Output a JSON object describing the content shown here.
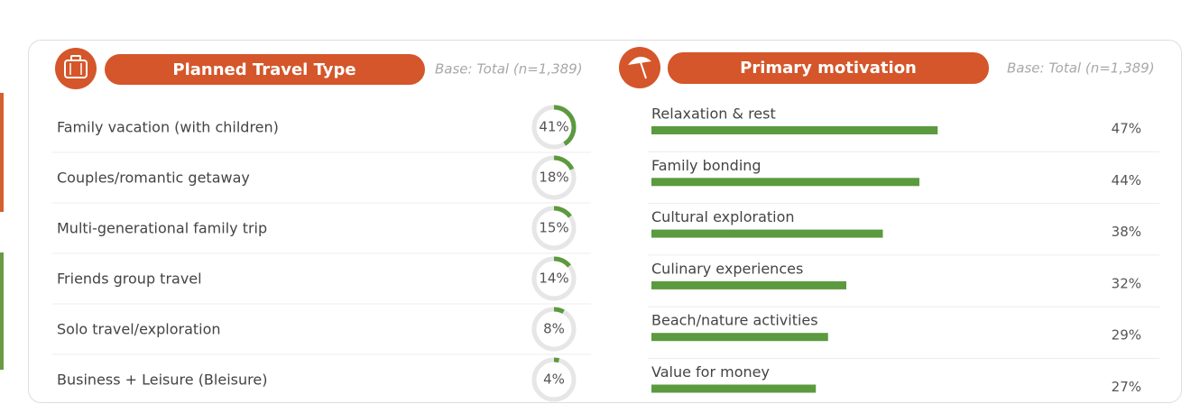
{
  "chart_data": [
    {
      "type": "donut-list",
      "title": "Planned Travel Type",
      "subtitle": "Base: Total (n=1,389)",
      "categories": [
        "Family vacation (with children)",
        "Couples/romantic getaway",
        "Multi-generational family trip",
        "Friends group travel",
        "Solo travel/exploration",
        "Business + Leisure (Bleisure)"
      ],
      "values": [
        41,
        18,
        15,
        14,
        8,
        4
      ],
      "value_labels": [
        "41%",
        "18%",
        "15%",
        "14%",
        "8%",
        "4%"
      ],
      "color": "#5b9a3e",
      "vlim": [
        0,
        100
      ]
    },
    {
      "type": "bar-list",
      "title": "Primary motivation",
      "subtitle": "Base: Total (n=1,389)",
      "categories": [
        "Relaxation & rest",
        "Family bonding",
        "Cultural exploration",
        "Culinary experiences",
        "Beach/nature activities",
        "Value for money"
      ],
      "values": [
        47,
        44,
        38,
        32,
        29,
        27
      ],
      "value_labels": [
        "47%",
        "44%",
        "38%",
        "32%",
        "29%",
        "27%"
      ],
      "color": "#5b9a3e",
      "xlim": [
        0,
        100
      ]
    }
  ]
}
